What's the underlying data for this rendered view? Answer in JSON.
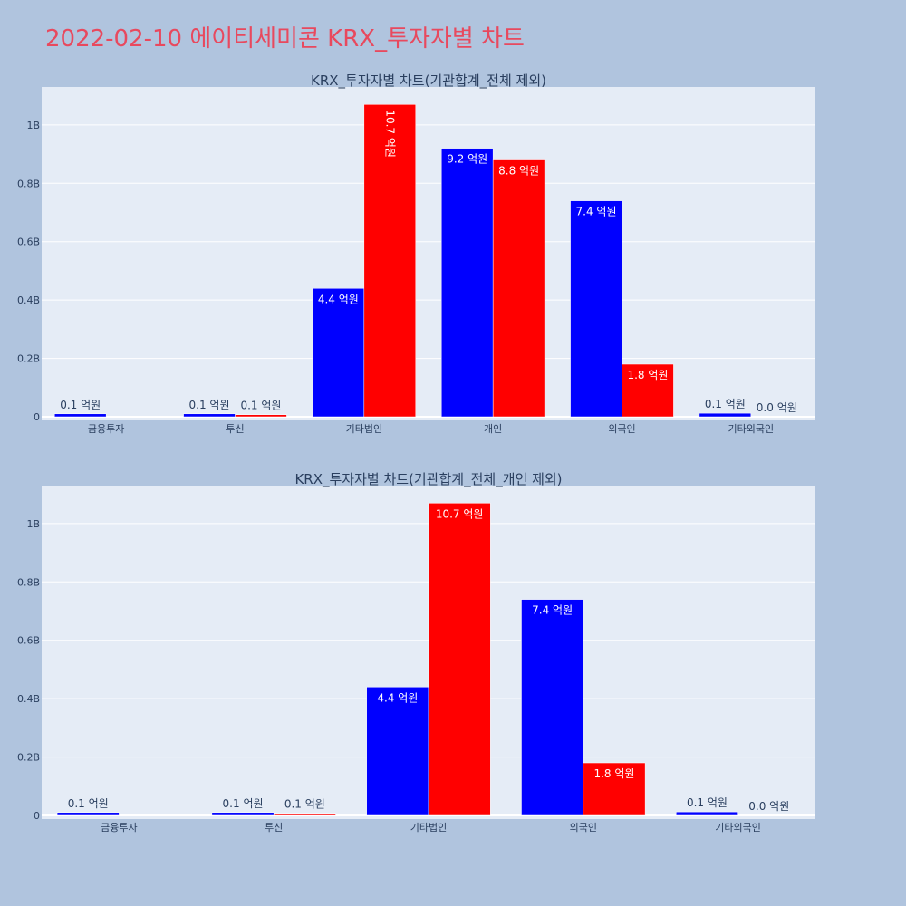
{
  "page_title": "2022-02-10 에이티세미콘 KRX_투자자별 차트",
  "colors": {
    "buy": "#0000ff",
    "sell": "#ff0000",
    "plot_bg": "#e5ecf6",
    "page_bg": "#b0c4de",
    "title": "#e8495e"
  },
  "chart_data": [
    {
      "type": "bar",
      "title": "KRX_투자자별 차트(기관합계_전체 제외)",
      "categories": [
        "금융투자",
        "투신",
        "기타법인",
        "개인",
        "외국인",
        "기타외국인"
      ],
      "ylim": [
        0,
        1.13
      ],
      "yticks": [
        0,
        0.2,
        0.4,
        0.6,
        0.8,
        1.0
      ],
      "ytick_labels": [
        "0",
        "0.2B",
        "0.4B",
        "0.6B",
        "0.8B",
        "1B"
      ],
      "grid": true,
      "series": [
        {
          "color": "#0000ff",
          "values": [
            0.01,
            0.01,
            0.44,
            0.92,
            0.74,
            0.012
          ],
          "labels": [
            "0.1 억원",
            "0.1 억원",
            "4.4 억원",
            "9.2 억원",
            "7.4 억원",
            "0.1 억원"
          ]
        },
        {
          "color": "#ff0000",
          "values": [
            0,
            0.007,
            1.07,
            0.88,
            0.18,
            0.0
          ],
          "labels": [
            "",
            "0.1 억원",
            "10.7 억원",
            "8.8 억원",
            "1.8 억원",
            "0.0 억원"
          ]
        }
      ]
    },
    {
      "type": "bar",
      "title": "KRX_투자자별 차트(기관합계_전체_개인 제외)",
      "categories": [
        "금융투자",
        "투신",
        "기타법인",
        "외국인",
        "기타외국인"
      ],
      "ylim": [
        0,
        1.13
      ],
      "yticks": [
        0,
        0.2,
        0.4,
        0.6,
        0.8,
        1.0
      ],
      "ytick_labels": [
        "0",
        "0.2B",
        "0.4B",
        "0.6B",
        "0.8B",
        "1B"
      ],
      "grid": true,
      "series": [
        {
          "color": "#0000ff",
          "values": [
            0.01,
            0.01,
            0.44,
            0.74,
            0.012
          ],
          "labels": [
            "0.1 억원",
            "0.1 억원",
            "4.4 억원",
            "7.4 억원",
            "0.1 억원"
          ]
        },
        {
          "color": "#ff0000",
          "values": [
            0,
            0.007,
            1.07,
            0.18,
            0.0
          ],
          "labels": [
            "",
            "0.1 억원",
            "10.7 억원",
            "1.8 억원",
            "0.0 억원"
          ]
        }
      ]
    }
  ]
}
